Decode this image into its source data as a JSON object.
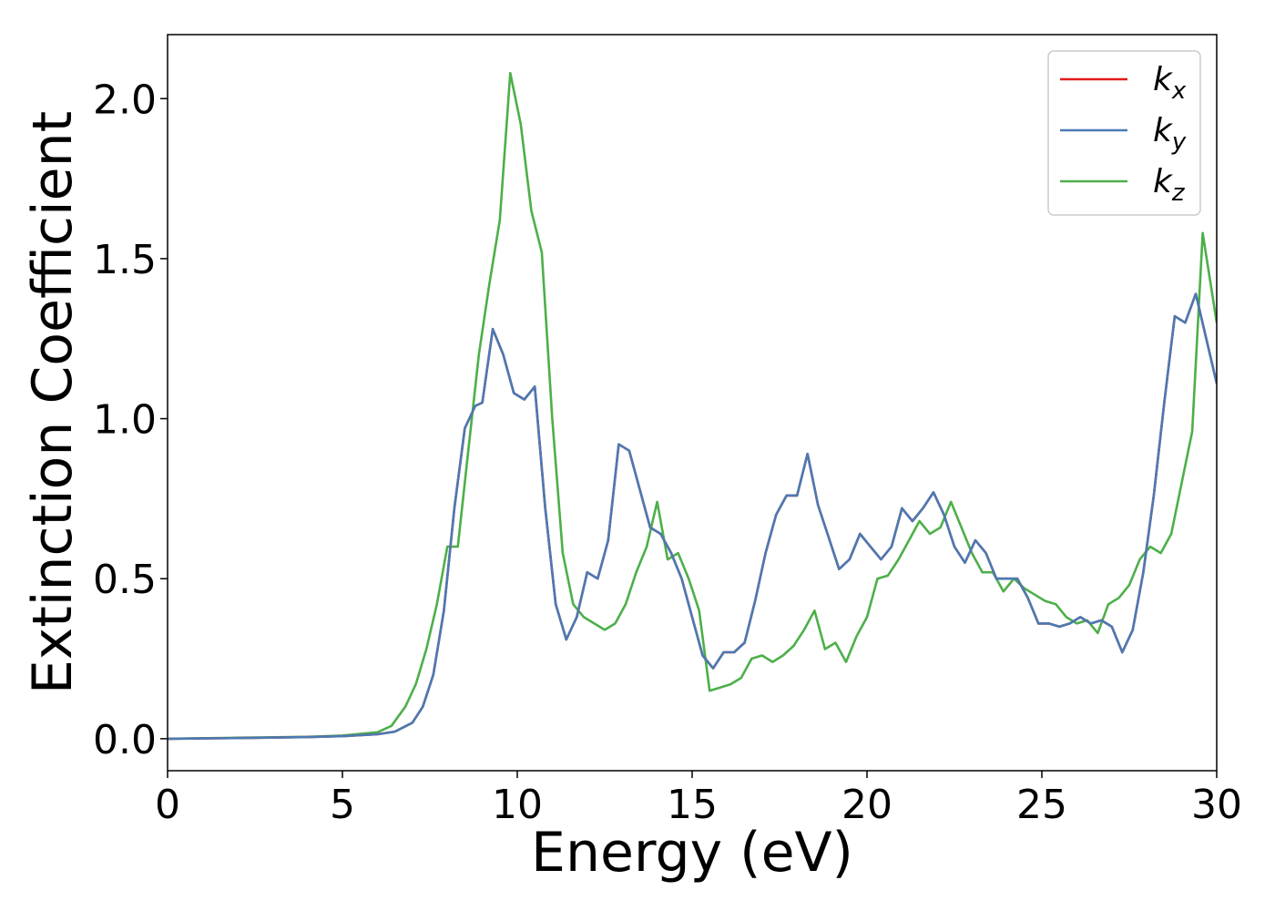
{
  "chart_data": {
    "type": "line",
    "xlabel": "Energy (eV)",
    "ylabel": "Extinction Coefficient",
    "xlim": [
      0,
      30
    ],
    "ylim": [
      -0.1,
      2.2
    ],
    "xticks": [
      0,
      5,
      10,
      15,
      20,
      25,
      30
    ],
    "xtick_labels": [
      "0",
      "5",
      "10",
      "15",
      "20",
      "25",
      "30"
    ],
    "yticks": [
      0.0,
      0.5,
      1.0,
      1.5,
      2.0
    ],
    "ytick_labels": [
      "0.0",
      "0.5",
      "1.0",
      "1.5",
      "2.0"
    ],
    "grid": false,
    "legend_position": "top-right",
    "series": [
      {
        "name": "k_x",
        "legend": {
          "base": "k",
          "sub": "x"
        },
        "color": "#e41a1c",
        "x": [
          0,
          2,
          4,
          5,
          6,
          6.5,
          7,
          7.3,
          7.6,
          7.9,
          8.2,
          8.5,
          8.8,
          9.0,
          9.3,
          9.6,
          9.9,
          10.2,
          10.5,
          10.8,
          11.1,
          11.4,
          11.7,
          12.0,
          12.3,
          12.6,
          12.9,
          13.2,
          13.5,
          13.8,
          14.1,
          14.4,
          14.7,
          15.0,
          15.3,
          15.6,
          15.9,
          16.2,
          16.5,
          16.8,
          17.1,
          17.4,
          17.7,
          18.0,
          18.3,
          18.6,
          18.9,
          19.2,
          19.5,
          19.8,
          20.1,
          20.4,
          20.7,
          21.0,
          21.3,
          21.6,
          21.9,
          22.2,
          22.5,
          22.8,
          23.1,
          23.4,
          23.7,
          24.0,
          24.3,
          24.6,
          24.9,
          25.2,
          25.5,
          25.8,
          26.1,
          26.4,
          26.7,
          27.0,
          27.3,
          27.6,
          27.9,
          28.2,
          28.5,
          28.8,
          29.1,
          29.4,
          29.7,
          30.0
        ],
        "y": [
          0.0,
          0.002,
          0.005,
          0.008,
          0.014,
          0.022,
          0.05,
          0.1,
          0.2,
          0.4,
          0.72,
          0.97,
          1.04,
          1.05,
          1.28,
          1.2,
          1.08,
          1.06,
          1.1,
          0.72,
          0.42,
          0.31,
          0.38,
          0.52,
          0.5,
          0.62,
          0.92,
          0.9,
          0.78,
          0.66,
          0.64,
          0.58,
          0.5,
          0.38,
          0.26,
          0.22,
          0.27,
          0.27,
          0.3,
          0.43,
          0.58,
          0.7,
          0.76,
          0.76,
          0.89,
          0.73,
          0.63,
          0.53,
          0.56,
          0.64,
          0.6,
          0.56,
          0.6,
          0.72,
          0.68,
          0.72,
          0.77,
          0.7,
          0.6,
          0.55,
          0.62,
          0.58,
          0.5,
          0.5,
          0.5,
          0.44,
          0.36,
          0.36,
          0.35,
          0.36,
          0.38,
          0.36,
          0.37,
          0.35,
          0.27,
          0.34,
          0.52,
          0.76,
          1.05,
          1.32,
          1.3,
          1.39,
          1.25,
          1.11
        ]
      },
      {
        "name": "k_y",
        "legend": {
          "base": "k",
          "sub": "y"
        },
        "color": "#4a7ab3",
        "x": [
          0,
          2,
          4,
          5,
          6,
          6.5,
          7,
          7.3,
          7.6,
          7.9,
          8.2,
          8.5,
          8.8,
          9.0,
          9.3,
          9.6,
          9.9,
          10.2,
          10.5,
          10.8,
          11.1,
          11.4,
          11.7,
          12.0,
          12.3,
          12.6,
          12.9,
          13.2,
          13.5,
          13.8,
          14.1,
          14.4,
          14.7,
          15.0,
          15.3,
          15.6,
          15.9,
          16.2,
          16.5,
          16.8,
          17.1,
          17.4,
          17.7,
          18.0,
          18.3,
          18.6,
          18.9,
          19.2,
          19.5,
          19.8,
          20.1,
          20.4,
          20.7,
          21.0,
          21.3,
          21.6,
          21.9,
          22.2,
          22.5,
          22.8,
          23.1,
          23.4,
          23.7,
          24.0,
          24.3,
          24.6,
          24.9,
          25.2,
          25.5,
          25.8,
          26.1,
          26.4,
          26.7,
          27.0,
          27.3,
          27.6,
          27.9,
          28.2,
          28.5,
          28.8,
          29.1,
          29.4,
          29.7,
          30.0
        ],
        "y": [
          0.0,
          0.002,
          0.005,
          0.008,
          0.014,
          0.022,
          0.05,
          0.1,
          0.2,
          0.4,
          0.72,
          0.97,
          1.04,
          1.05,
          1.28,
          1.2,
          1.08,
          1.06,
          1.1,
          0.72,
          0.42,
          0.31,
          0.38,
          0.52,
          0.5,
          0.62,
          0.92,
          0.9,
          0.78,
          0.66,
          0.64,
          0.58,
          0.5,
          0.38,
          0.26,
          0.22,
          0.27,
          0.27,
          0.3,
          0.43,
          0.58,
          0.7,
          0.76,
          0.76,
          0.89,
          0.73,
          0.63,
          0.53,
          0.56,
          0.64,
          0.6,
          0.56,
          0.6,
          0.72,
          0.68,
          0.72,
          0.77,
          0.7,
          0.6,
          0.55,
          0.62,
          0.58,
          0.5,
          0.5,
          0.5,
          0.44,
          0.36,
          0.36,
          0.35,
          0.36,
          0.38,
          0.36,
          0.37,
          0.35,
          0.27,
          0.34,
          0.52,
          0.76,
          1.05,
          1.32,
          1.3,
          1.39,
          1.25,
          1.11
        ]
      },
      {
        "name": "k_z",
        "legend": {
          "base": "k",
          "sub": "z"
        },
        "color": "#4daf4a",
        "x": [
          0,
          2,
          4,
          5,
          6,
          6.4,
          6.8,
          7.1,
          7.4,
          7.7,
          8.0,
          8.3,
          8.6,
          8.9,
          9.2,
          9.5,
          9.8,
          10.1,
          10.4,
          10.7,
          11.0,
          11.3,
          11.6,
          11.9,
          12.2,
          12.5,
          12.8,
          13.1,
          13.4,
          13.7,
          14.0,
          14.3,
          14.6,
          14.9,
          15.2,
          15.5,
          15.8,
          16.1,
          16.4,
          16.7,
          17.0,
          17.3,
          17.6,
          17.9,
          18.2,
          18.5,
          18.8,
          19.1,
          19.4,
          19.7,
          20.0,
          20.3,
          20.6,
          20.9,
          21.2,
          21.5,
          21.8,
          22.1,
          22.4,
          22.7,
          23.0,
          23.3,
          23.6,
          23.9,
          24.2,
          24.5,
          24.8,
          25.1,
          25.4,
          25.7,
          26.0,
          26.3,
          26.6,
          26.9,
          27.2,
          27.5,
          27.8,
          28.1,
          28.4,
          28.7,
          29.0,
          29.3,
          29.6,
          30.0
        ],
        "y": [
          0.0,
          0.003,
          0.006,
          0.01,
          0.02,
          0.04,
          0.1,
          0.17,
          0.28,
          0.42,
          0.6,
          0.6,
          0.9,
          1.2,
          1.42,
          1.62,
          2.08,
          1.92,
          1.65,
          1.52,
          1.0,
          0.58,
          0.42,
          0.38,
          0.36,
          0.34,
          0.36,
          0.42,
          0.52,
          0.6,
          0.74,
          0.56,
          0.58,
          0.5,
          0.4,
          0.15,
          0.16,
          0.17,
          0.19,
          0.25,
          0.26,
          0.24,
          0.26,
          0.29,
          0.34,
          0.4,
          0.28,
          0.3,
          0.24,
          0.32,
          0.38,
          0.5,
          0.51,
          0.56,
          0.62,
          0.68,
          0.64,
          0.66,
          0.74,
          0.66,
          0.58,
          0.52,
          0.52,
          0.46,
          0.5,
          0.47,
          0.45,
          0.43,
          0.42,
          0.38,
          0.36,
          0.37,
          0.33,
          0.42,
          0.44,
          0.48,
          0.56,
          0.6,
          0.58,
          0.64,
          0.8,
          0.96,
          1.58,
          1.3
        ]
      }
    ]
  }
}
